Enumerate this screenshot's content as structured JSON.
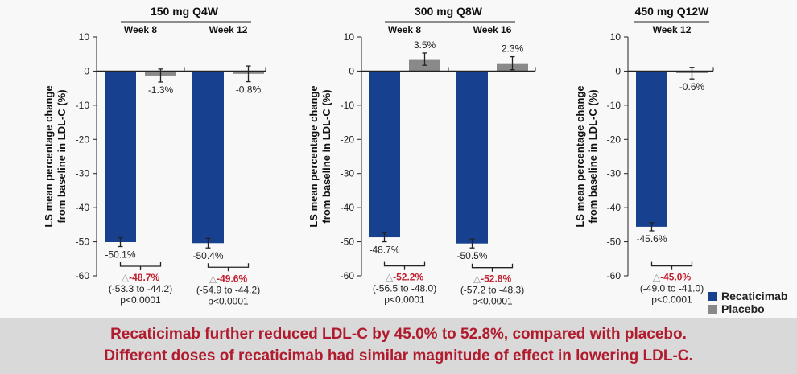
{
  "chart_data": {
    "type": "bar",
    "ylabel": "LS mean percentage change from baseline in LDL-C (%)",
    "ylabel_lines": [
      "LS mean percentage change",
      "from baseline in LDL-C (%)"
    ],
    "ylim": [
      -60,
      10
    ],
    "yticks": [
      10,
      0,
      -10,
      -20,
      -30,
      -40,
      -50,
      -60
    ],
    "grid": false,
    "legend_placement": "bottom-right",
    "series_colors": {
      "Recaticimab": "#17418f",
      "Placebo": "#898989"
    },
    "panels": [
      {
        "title": "150 mg Q4W",
        "groups": [
          {
            "label": "Week 8",
            "recaticimab": -50.1,
            "recaticimab_err": 1.3,
            "placebo": -1.3,
            "placebo_err": 1.9,
            "recaticimab_label": "-50.1%",
            "placebo_label": "-1.3%",
            "delta": "-48.7%",
            "ci": "(-53.3 to -44.2)",
            "p": "p<0.0001"
          },
          {
            "label": "Week 12",
            "recaticimab": -50.4,
            "recaticimab_err": 1.4,
            "placebo": -0.8,
            "placebo_err": 2.3,
            "recaticimab_label": "-50.4%",
            "placebo_label": "-0.8%",
            "delta": "-49.6%",
            "ci": "(-54.9 to -44.2)",
            "p": "p<0.0001"
          }
        ]
      },
      {
        "title": "300 mg Q8W",
        "groups": [
          {
            "label": "Week 8",
            "recaticimab": -48.7,
            "recaticimab_err": 1.3,
            "placebo": 3.5,
            "placebo_err": 1.8,
            "recaticimab_label": "-48.7%",
            "placebo_label": "3.5%",
            "delta": "-52.2%",
            "ci": "(-56.5 to -48.0)",
            "p": "p<0.0001"
          },
          {
            "label": "Week 16",
            "recaticimab": -50.5,
            "recaticimab_err": 1.3,
            "placebo": 2.3,
            "placebo_err": 1.9,
            "recaticimab_label": "-50.5%",
            "placebo_label": "2.3%",
            "delta": "-52.8%",
            "ci": "(-57.2 to -48.3)",
            "p": "p<0.0001"
          }
        ]
      },
      {
        "title": "450 mg Q12W",
        "groups": [
          {
            "label": "Week 12",
            "recaticimab": -45.6,
            "recaticimab_err": 1.2,
            "placebo": -0.6,
            "placebo_err": 1.7,
            "recaticimab_label": "-45.6%",
            "placebo_label": "-0.6%",
            "delta": "-45.0%",
            "ci": "(-49.0 to -41.0)",
            "p": "p<0.0001"
          }
        ]
      }
    ],
    "delta_symbol": "△",
    "legend": [
      "Recaticimab",
      "Placebo"
    ]
  },
  "banner": {
    "line1": "Recaticimab further reduced LDL-C by 45.0% to 52.8%, compared with placebo.",
    "line2": "Different doses of recaticimab had similar magnitude of effect in lowering LDL-C."
  },
  "colors": {
    "delta_text": "#c0202f",
    "banner_text": "#b01c2e",
    "banner_bg": "#d9d9d9"
  }
}
